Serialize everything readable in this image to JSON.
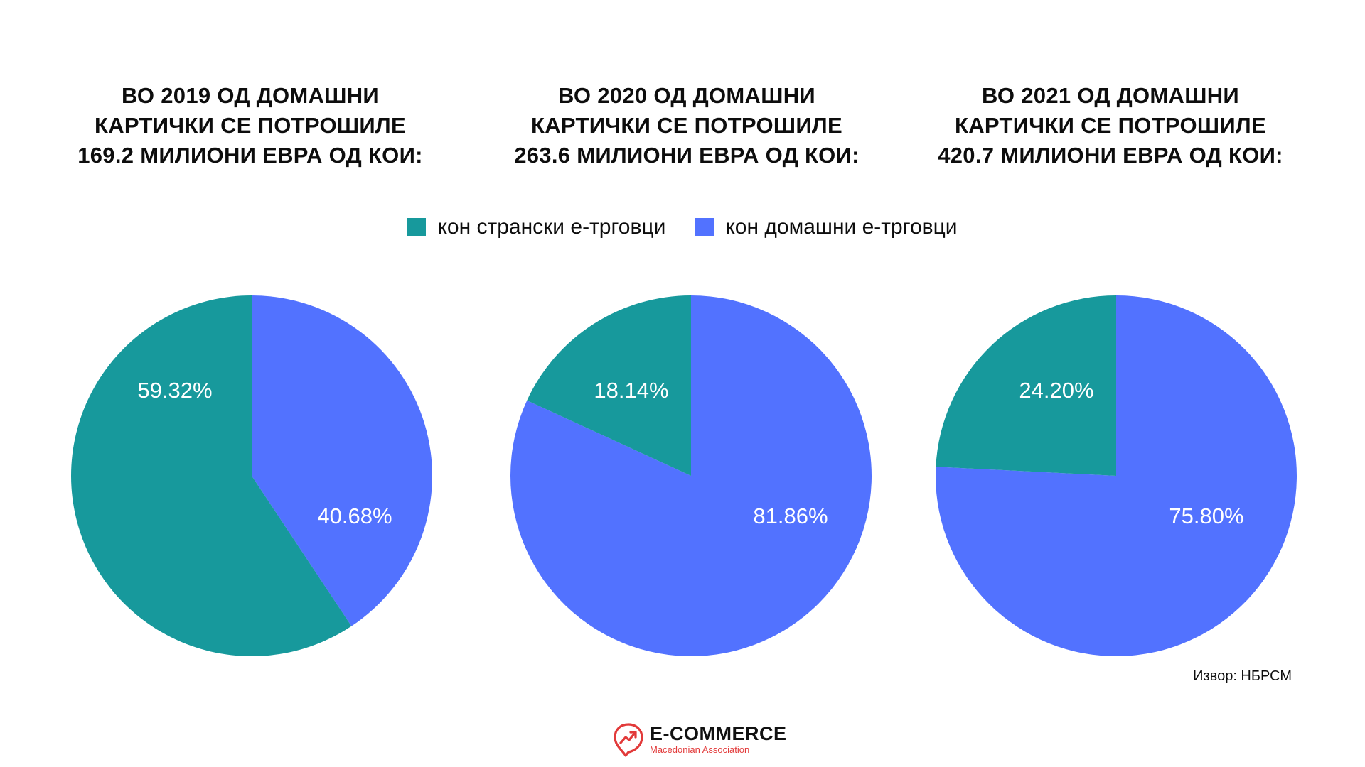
{
  "titles": [
    [
      "ВО 2019 ОД ДОМАШНИ",
      "КАРТИЧКИ СЕ ПОТРОШИЛЕ",
      "169.2 МИЛИОНИ ЕВРА ОД КОИ:"
    ],
    [
      "ВО 2020 ОД ДОМАШНИ",
      "КАРТИЧКИ СЕ ПОТРОШИЛЕ",
      "263.6 МИЛИОНИ ЕВРА ОД КОИ:"
    ],
    [
      "ВО 2021 ОД ДОМАШНИ",
      "КАРТИЧКИ СЕ ПОТРОШИЛЕ",
      "420.7 МИЛИОНИ ЕВРА ОД КОИ:"
    ]
  ],
  "legend": [
    {
      "label": "кон странски е-трговци",
      "color": "#17999c"
    },
    {
      "label": "кон домашни е-трговци",
      "color": "#5272ff"
    }
  ],
  "chart_data": [
    {
      "type": "pie",
      "categories": [
        "кон странски е-трговци",
        "кон домашни е-трговци"
      ],
      "values": [
        59.32,
        40.68
      ],
      "labels": [
        "59.32%",
        "40.68%"
      ],
      "colors": [
        "#17999c",
        "#5272ff"
      ]
    },
    {
      "type": "pie",
      "categories": [
        "кон странски е-трговци",
        "кон домашни е-трговци"
      ],
      "values": [
        18.14,
        81.86
      ],
      "labels": [
        "18.14%",
        "81.86%"
      ],
      "colors": [
        "#17999c",
        "#5272ff"
      ]
    },
    {
      "type": "pie",
      "categories": [
        "кон странски е-трговци",
        "кон домашни е-трговци"
      ],
      "values": [
        24.2,
        75.8
      ],
      "labels": [
        "24.20%",
        "75.80%"
      ],
      "colors": [
        "#17999c",
        "#5272ff"
      ]
    }
  ],
  "source": "Извор: НБРСМ",
  "logo": {
    "name": "E-COMMERCE",
    "subtitle": "Macedonian Association",
    "icon": "trend-arrow-pin-icon",
    "color": "#e23a3a"
  }
}
